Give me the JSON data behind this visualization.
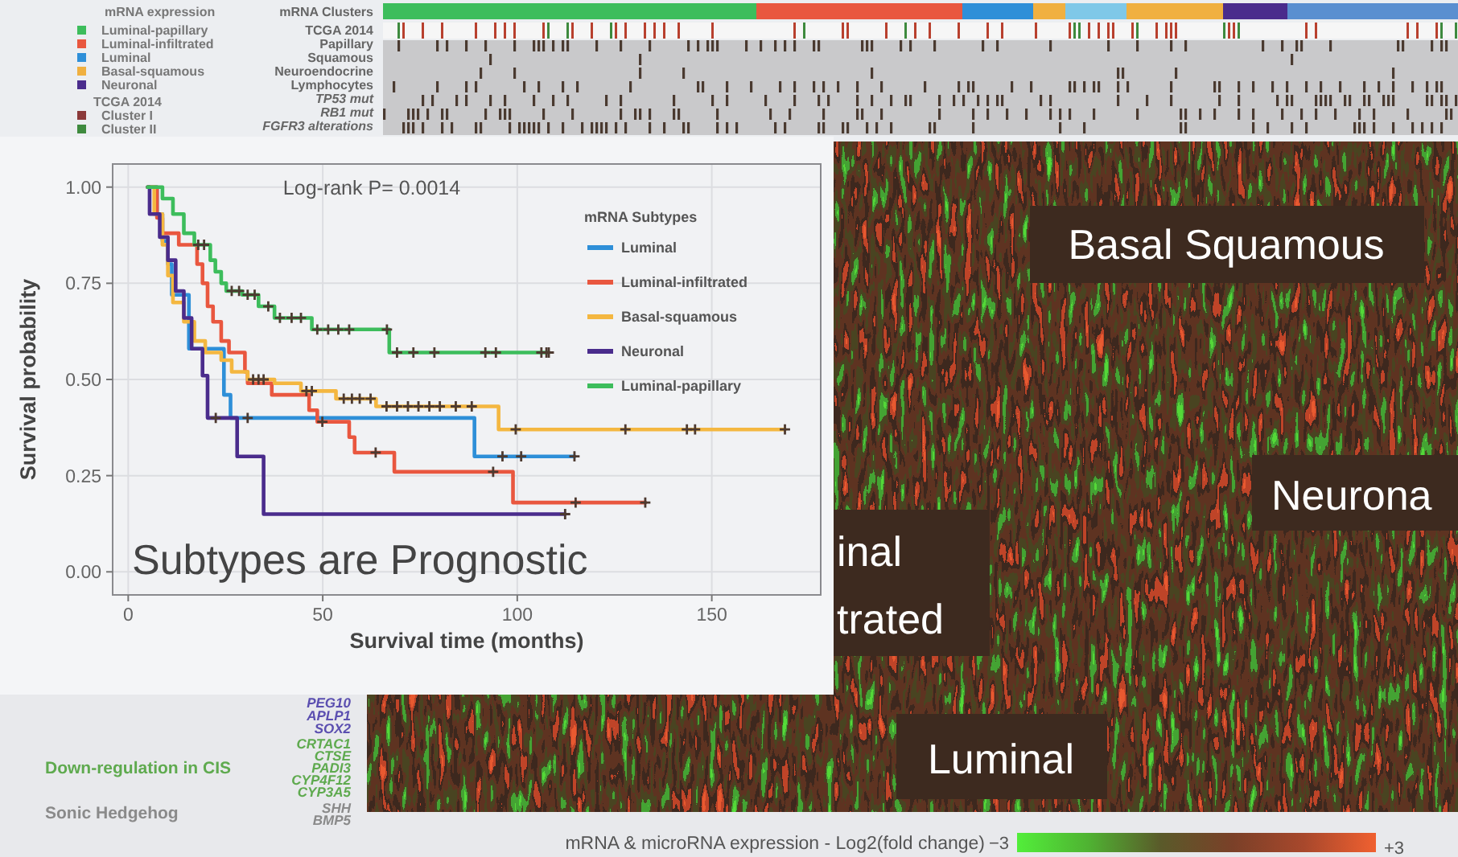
{
  "chart_data": [
    {
      "type": "step",
      "xlabel": "Survival time (months)",
      "ylabel": "Survival probability",
      "legend_title": "mRNA Subtypes",
      "annotations": [
        "Log-rank P= 0.0014",
        "Subtypes are Prognostic"
      ],
      "xlim": [
        -4,
        178
      ],
      "xticks": [
        0,
        50,
        100,
        150
      ],
      "ylim": [
        -0.06,
        1.06
      ],
      "yticks": [
        {
          "value": 0,
          "label": "0.00"
        },
        {
          "value": 0.25,
          "label": "0.25"
        },
        {
          "value": 0.5,
          "label": "0.50"
        },
        {
          "value": 0.75,
          "label": "0.75"
        },
        {
          "value": 1,
          "label": "1.00"
        }
      ],
      "grid": true,
      "legend": "top right",
      "line_style": "solid",
      "series": [
        {
          "name": "Luminal",
          "color": "#2e8fd8",
          "type": "step",
          "x": [
            5,
            7.4,
            8.8,
            10.2,
            11.2,
            15.6,
            24.6,
            26.3,
            89.0,
            114.7
          ],
          "values": [
            1,
            0.93,
            0.86,
            0.8,
            0.72,
            0.58,
            0.46,
            0.4,
            0.3,
            0.3
          ]
        },
        {
          "name": "Luminal-infiltrated",
          "color": "#e9573f",
          "type": "step",
          "x": [
            5,
            7.4,
            8.8,
            13.0,
            17.7,
            19.1,
            20.4,
            21.8,
            23.9,
            25.9,
            30.0,
            30.7,
            36.9,
            46.5,
            48.6,
            56.8,
            58.2,
            68.4,
            98.9,
            132.9
          ],
          "values": [
            1,
            0.92,
            0.88,
            0.85,
            0.8,
            0.75,
            0.69,
            0.65,
            0.6,
            0.57,
            0.52,
            0.49,
            0.46,
            0.42,
            0.39,
            0.35,
            0.31,
            0.26,
            0.18,
            0.18
          ]
        },
        {
          "name": "Basal-squamous",
          "color": "#f4b740",
          "type": "step",
          "x": [
            5,
            6.7,
            8.8,
            10.2,
            11.5,
            14.3,
            17.0,
            19.8,
            23.9,
            26.6,
            30.7,
            37.6,
            44.4,
            53.4,
            63.7,
            95.2,
            168.8
          ],
          "values": [
            1,
            0.93,
            0.85,
            0.77,
            0.7,
            0.65,
            0.6,
            0.57,
            0.55,
            0.52,
            0.5,
            0.49,
            0.47,
            0.45,
            0.43,
            0.37,
            0.37
          ]
        },
        {
          "name": "Neuronal",
          "color": "#4a2c8c",
          "type": "step",
          "x": [
            5,
            5.5,
            8.1,
            10.2,
            12.2,
            14.3,
            16.3,
            19.1,
            20.4,
            28.0,
            34.8,
            112.3
          ],
          "values": [
            1,
            0.93,
            0.87,
            0.81,
            0.73,
            0.66,
            0.58,
            0.51,
            0.4,
            0.3,
            0.15,
            0.15
          ]
        },
        {
          "name": "Luminal-papillary",
          "color": "#3dbd5c",
          "type": "step",
          "x": [
            5,
            8.8,
            11.5,
            14.3,
            17.0,
            21.1,
            22.4,
            23.9,
            25.2,
            29.3,
            33.5,
            37.6,
            47.2,
            67.1,
            108.1
          ],
          "values": [
            1,
            0.97,
            0.93,
            0.88,
            0.85,
            0.81,
            0.78,
            0.75,
            0.73,
            0.72,
            0.69,
            0.66,
            0.63,
            0.57,
            0.57
          ]
        },
        {
          "type": "scatter",
          "marker": "cross",
          "color": "#4d3a30",
          "x": [
            30.7,
            96.2,
            101.0,
            114.7
          ],
          "values": [
            0.4,
            0.3,
            0.3,
            0.3
          ]
        },
        {
          "type": "scatter",
          "marker": "cross",
          "color": "#4d3a30",
          "x": [
            49.9,
            63.6,
            93.8,
            115.0,
            132.9
          ],
          "values": [
            0.39,
            0.31,
            0.26,
            0.18,
            0.18
          ]
        },
        {
          "type": "scatter",
          "marker": "cross",
          "color": "#4d3a30",
          "x": [
            32.1,
            33.5,
            34.8,
            45.8,
            47.2,
            55.4,
            57.5,
            59.5,
            62.3,
            66.4,
            69.1,
            71.9,
            74.6,
            77.4,
            80.1,
            84.2,
            88.3,
            99.6,
            127.8,
            143.6,
            145.7,
            168.8
          ],
          "values": [
            0.5,
            0.5,
            0.5,
            0.47,
            0.47,
            0.45,
            0.45,
            0.45,
            0.45,
            0.43,
            0.43,
            0.43,
            0.43,
            0.43,
            0.43,
            0.43,
            0.43,
            0.37,
            0.37,
            0.37,
            0.37,
            0.37
          ]
        },
        {
          "type": "scatter",
          "marker": "cross",
          "color": "#4d3a30",
          "x": [
            22.5,
            112.3
          ],
          "values": [
            0.4,
            0.15
          ]
        },
        {
          "type": "scatter",
          "marker": "cross",
          "color": "#4d3a30",
          "x": [
            18.0,
            19.5,
            26.6,
            28.5,
            30.7,
            32.5,
            36.0,
            39.0,
            42.0,
            44.4,
            48.6,
            51.4,
            54.0,
            56.8,
            66.5,
            69.1,
            73.3,
            78.7,
            91.8,
            94.5,
            106.2,
            107.5,
            108.1
          ],
          "values": [
            0.85,
            0.85,
            0.73,
            0.73,
            0.72,
            0.72,
            0.69,
            0.66,
            0.66,
            0.66,
            0.63,
            0.63,
            0.63,
            0.63,
            0.63,
            0.57,
            0.57,
            0.57,
            0.57,
            0.57,
            0.57,
            0.57,
            0.57
          ]
        }
      ]
    },
    {
      "type": "other",
      "annotations": [
        "mRNA expression",
        "Luminal-papillary",
        "Luminal-infiltrated",
        "Luminal",
        "Basal-squamous",
        "Neuronal",
        "TCGA 2014",
        "Cluster I",
        "Cluster II",
        "mRNA Clusters",
        "TCGA 2014",
        "Papillary",
        "Squamous",
        "Neuroendocrine",
        "Lymphocytes",
        "TP53 mut",
        "RB1 mut",
        "FGFR3 alterations",
        "Basal Squamous",
        "Neurona",
        "inal",
        "trated",
        "Luminal",
        "PEG10",
        "APLP1",
        "SOX2",
        "CRTAC1",
        "CTSE",
        "PADI3",
        "CYP4F12",
        "CYP3A5",
        "SHH",
        "BMP5",
        "Down-regulation in CIS",
        "Sonic Hedgehog",
        "mRNA & microRNA expression - Log2(fold change)",
        "−3",
        "+3"
      ]
    }
  ]
}
